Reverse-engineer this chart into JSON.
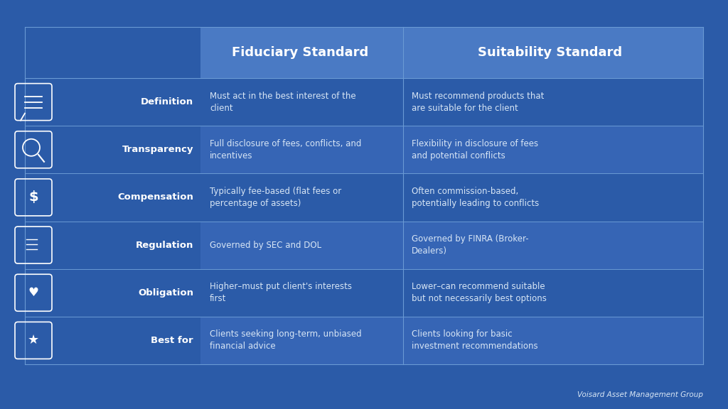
{
  "background_color": "#2B5BA8",
  "table_bg_dark": "#2B5BA8",
  "table_bg_medium": "#3D6DB8",
  "table_bg_light": "#4A7AC4",
  "header_bg": "#4A7AC4",
  "row_alt1": "#2B5BA8",
  "row_alt2": "#3665B5",
  "line_color": "#6A9AD4",
  "text_white": "#FFFFFF",
  "text_light": "#D8E6F5",
  "col_headers": [
    "Fiduciary Standard",
    "Suitability Standard"
  ],
  "row_labels": [
    "Definition",
    "Transparency",
    "Compensation",
    "Regulation",
    "Obligation",
    "Best for"
  ],
  "fiduciary_data": [
    "Must act in the best interest of the\nclient",
    "Full disclosure of fees, conflicts, and\nincentives",
    "Typically fee-based (flat fees or\npercentage of assets)",
    "Governed by SEC and DOL",
    "Higher–must put client's interests\nfirst",
    "Clients seeking long-term, unbiased\nfinancial advice"
  ],
  "suitability_data": [
    "Must recommend products that\nare suitable for the client",
    "Flexibility in disclosure of fees\nand potential conflicts",
    "Often commission-based,\npotentially leading to conflicts",
    "Governed by FINRA (Broker-\nDealers)",
    "Lower–can recommend suitable\nbut not necessarily best options",
    "Clients looking for basic\ninvestment recommendations"
  ],
  "footer_text": "Voisard Asset Management Group",
  "icon_symbols": [
    "≡",
    "🔍",
    "$",
    "⚖",
    "🤝",
    "★"
  ]
}
